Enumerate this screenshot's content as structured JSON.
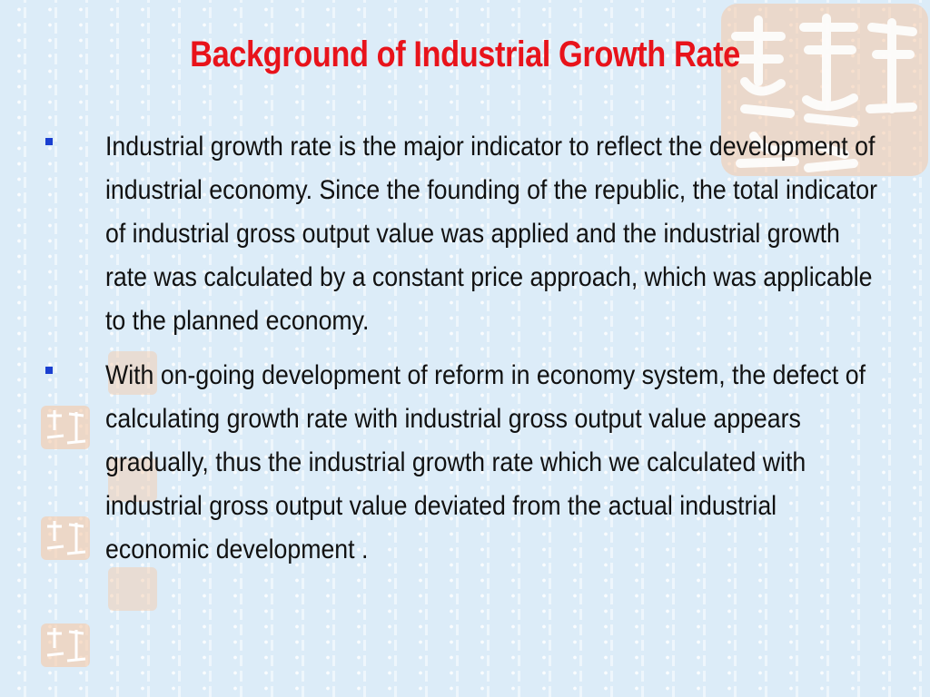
{
  "slide": {
    "title": "Background of Industrial Growth Rate",
    "bullets": [
      {
        "text": "Industrial growth rate is the major indicator to reflect the development of industrial economy. Since the founding of the republic, the total indicator of industrial gross output value was applied and the industrial growth rate was calculated by a constant price approach, which was applicable to the planned economy."
      },
      {
        "text": "With on-going development of reform in economy system, the defect of calculating growth rate with industrial gross output value appears gradually, thus the industrial growth rate which we calculated with industrial gross output value deviated from the actual industrial economic development ."
      }
    ]
  },
  "colors": {
    "title": "#e8131b",
    "bullet_marker": "#1a3fd0",
    "background": "#dcecf8",
    "seal": "#f6c9a6"
  },
  "decorations": [
    "seal-watermark"
  ]
}
